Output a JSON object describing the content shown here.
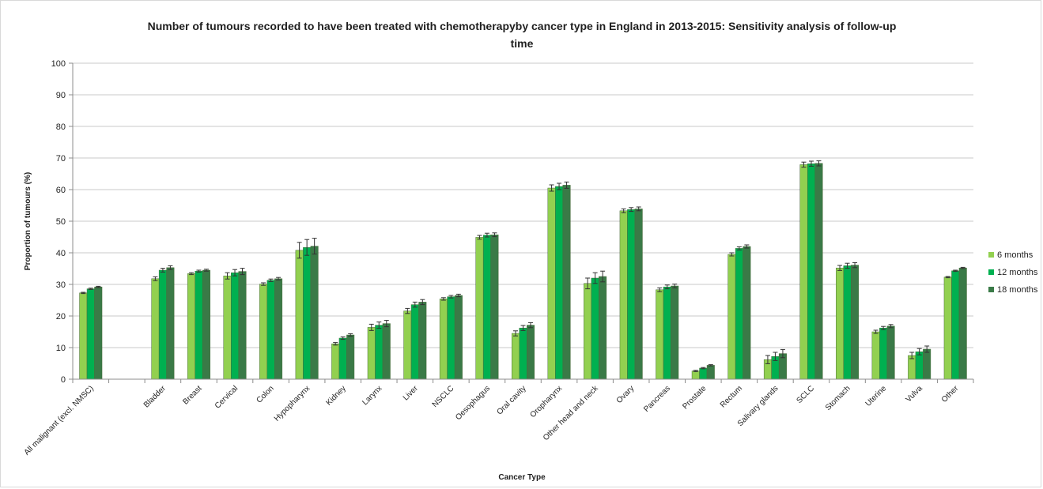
{
  "chart_data": {
    "type": "bar",
    "title_line1": "Number of tumours recorded to have been treated with chemotherapyby cancer type in England in 2013-2015: Sensitivity analysis of follow-up",
    "title_line2": "time",
    "xlabel": "Cancer Type",
    "ylabel": "Proportion of tumours (%)",
    "ylim": [
      0,
      100
    ],
    "yticks": [
      0,
      10,
      20,
      30,
      40,
      50,
      60,
      70,
      80,
      90,
      100
    ],
    "grid": true,
    "legend_position": "right",
    "error_bars": true,
    "categories": [
      "All malignant (excl. NMSC)",
      "",
      "Bladder",
      "Breast",
      "Cervical",
      "Colon",
      "Hypopharynx",
      "Kidney",
      "Larynx",
      "Liver",
      "NSCLC",
      "Oesophagus",
      "Oral cavity",
      "Oropharynx",
      "Other head and neck",
      "Ovary",
      "Pancreas",
      "Prostate",
      "Rectum",
      "Salivary glands",
      "SCLC",
      "Stomach",
      "Uterine",
      "Vulva",
      "Other"
    ],
    "series": [
      {
        "name": "6 months",
        "color": "#92d050",
        "values": [
          27.3,
          null,
          31.8,
          33.4,
          32.7,
          30.1,
          40.8,
          11.2,
          16.4,
          21.6,
          25.4,
          44.9,
          14.5,
          60.5,
          30.3,
          53.3,
          28.3,
          2.6,
          39.5,
          6.2,
          67.9,
          35.2,
          15.0,
          7.5,
          32.3
        ],
        "errors": [
          0.2,
          null,
          0.6,
          0.3,
          1.0,
          0.4,
          2.5,
          0.4,
          1.0,
          0.8,
          0.4,
          0.6,
          0.8,
          1.0,
          1.7,
          0.6,
          0.6,
          0.2,
          0.5,
          1.3,
          0.8,
          0.8,
          0.5,
          1.0,
          0.2
        ]
      },
      {
        "name": "12 months",
        "color": "#00b050",
        "values": [
          28.6,
          null,
          34.5,
          34.2,
          33.7,
          31.3,
          41.7,
          13.0,
          17.1,
          23.6,
          26.1,
          45.6,
          16.2,
          61.0,
          32.0,
          53.7,
          29.2,
          3.5,
          41.4,
          7.2,
          68.2,
          35.9,
          16.2,
          8.7,
          34.3
        ],
        "errors": [
          0.2,
          null,
          0.6,
          0.3,
          1.0,
          0.4,
          2.5,
          0.4,
          1.0,
          0.8,
          0.4,
          0.6,
          0.8,
          1.0,
          1.7,
          0.6,
          0.6,
          0.2,
          0.5,
          1.3,
          0.8,
          0.8,
          0.5,
          1.0,
          0.2
        ]
      },
      {
        "name": "18 months",
        "color": "#3a7a47",
        "values": [
          29.2,
          null,
          35.3,
          34.5,
          34.1,
          31.8,
          42.1,
          14.0,
          17.6,
          24.4,
          26.5,
          45.7,
          17.1,
          61.4,
          32.5,
          53.9,
          29.5,
          4.4,
          42.0,
          8.1,
          68.3,
          36.1,
          16.8,
          9.5,
          35.2
        ],
        "errors": [
          0.2,
          null,
          0.6,
          0.3,
          1.0,
          0.4,
          2.5,
          0.4,
          1.0,
          0.8,
          0.4,
          0.6,
          0.8,
          1.0,
          1.7,
          0.6,
          0.6,
          0.2,
          0.5,
          1.3,
          0.8,
          0.8,
          0.5,
          1.0,
          0.2
        ]
      }
    ],
    "colors": {
      "gridline": "#c8c8c8",
      "axis": "#8c8c8c",
      "errorbar": "#333333"
    }
  }
}
